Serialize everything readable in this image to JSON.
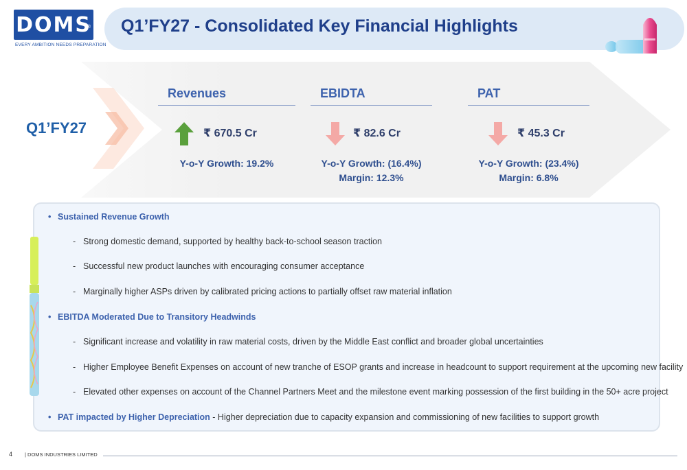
{
  "logo": {
    "brand": "DOMS",
    "reg": "®",
    "tagline": "EVERY AMBITION NEEDS PREPARATION"
  },
  "header": {
    "title": "Q1’FY27 - Consolidated Key Financial Highlights"
  },
  "summary": {
    "period": "Q1’FY27",
    "metrics": [
      {
        "label": "Revenues",
        "value": "₹ 670.5 Cr",
        "trend": "up",
        "growth": "Y-o-Y Growth: 19.2%",
        "margin": ""
      },
      {
        "label": "EBIDTA",
        "value": "₹ 82.6 Cr",
        "trend": "down",
        "growth": "Y-o-Y Growth: (16.4%)",
        "margin": "Margin: 12.3%"
      },
      {
        "label": "PAT",
        "value": "₹ 45.3 Cr",
        "trend": "down",
        "growth": "Y-o-Y Growth: (23.4%)",
        "margin": "Margin: 6.8%"
      }
    ]
  },
  "highlights": {
    "bullet_1": "Sustained Revenue Growth",
    "bullet_1_subs": [
      "Strong domestic demand, supported by healthy back-to-school season traction",
      "Successful new product launches with encouraging consumer acceptance",
      "Marginally higher ASPs driven by calibrated pricing actions to partially offset raw material inflation"
    ],
    "bullet_2": "EBITDA Moderated Due to Transitory Headwinds",
    "bullet_2_subs": [
      "Significant increase and volatility in raw material costs, driven by the Middle East conflict and broader global uncertainties",
      "Higher Employee Benefit Expenses on account of new tranche of ESOP grants and increase in headcount to support requirement at the upcoming new facility",
      "Elevated other expenses on account of the Channel Partners Meet and the milestone event marking possession of the first building in the 50+ acre project"
    ],
    "bullet_3_title": "PAT impacted by Higher Depreciation",
    "bullet_3_rest": " - Higher depreciation due to capacity expansion and commissioning of new facilities to support growth"
  },
  "footer": {
    "page_number": "4",
    "company": "|  DOMS INDUSTRIES LIMITED"
  },
  "colors": {
    "brand_blue": "#1f4fa3",
    "up_arrow": "#5aa03c",
    "down_arrow": "#f4a9a6",
    "heading_blue": "#3d62ad",
    "banner_bg": "#dde9f6"
  }
}
